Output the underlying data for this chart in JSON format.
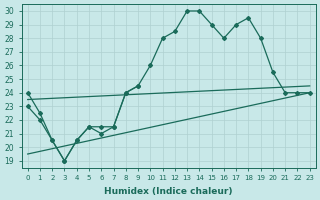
{
  "background_color": "#c8e8e8",
  "grid_color": "#afd0d0",
  "line_color": "#1a6b5a",
  "xlabel": "Humidex (Indice chaleur)",
  "xlim": [
    -0.5,
    23.5
  ],
  "ylim": [
    18.5,
    30.5
  ],
  "yticks": [
    19,
    20,
    21,
    22,
    23,
    24,
    25,
    26,
    27,
    28,
    29,
    30
  ],
  "xticks": [
    0,
    1,
    2,
    3,
    4,
    5,
    6,
    7,
    8,
    9,
    10,
    11,
    12,
    13,
    14,
    15,
    16,
    17,
    18,
    19,
    20,
    21,
    22,
    23
  ],
  "series": [
    {
      "x": [
        0,
        1,
        2,
        3,
        4,
        5,
        6,
        7,
        8,
        9,
        10,
        11,
        12,
        13,
        14,
        15,
        16,
        17,
        18,
        19,
        20,
        21,
        22,
        23
      ],
      "y": [
        24.0,
        22.5,
        null,
        19.0,
        null,
        null,
        null,
        null,
        null,
        null,
        26.0,
        28.0,
        28.5,
        30.0,
        30.0,
        29.0,
        28.0,
        29.0,
        29.5,
        28.0,
        25.5,
        24.0,
        24.0,
        24.0
      ],
      "has_markers": true,
      "markersize": 2.5
    },
    {
      "x": [
        0,
        1,
        2,
        3,
        4,
        5,
        6,
        7,
        8,
        9,
        10,
        11,
        12,
        13,
        14,
        15,
        16,
        17,
        18,
        19,
        20,
        21,
        22,
        23
      ],
      "y": [
        23.0,
        null,
        20.5,
        19.0,
        20.5,
        21.5,
        21.0,
        21.0,
        24.0,
        null,
        null,
        null,
        null,
        null,
        null,
        null,
        null,
        null,
        null,
        null,
        null,
        null,
        null,
        null
      ],
      "has_markers": true,
      "markersize": 2.5
    },
    {
      "x": [
        0,
        23
      ],
      "y": [
        23.5,
        24.5
      ],
      "has_markers": false,
      "markersize": 0
    },
    {
      "x": [
        0,
        23
      ],
      "y": [
        19.5,
        24.0
      ],
      "has_markers": false,
      "markersize": 0
    }
  ],
  "series_upper": {
    "x": [
      0,
      1,
      2,
      3,
      4,
      5,
      6,
      7,
      8,
      9,
      10,
      11,
      12,
      13,
      14,
      15,
      16,
      17,
      18,
      19,
      20,
      21,
      22,
      23
    ],
    "y": [
      24.0,
      22.5,
      20.5,
      19.0,
      20.5,
      21.5,
      21.5,
      21.5,
      24.0,
      24.5,
      26.0,
      28.0,
      28.5,
      30.0,
      30.0,
      29.0,
      28.0,
      29.0,
      29.5,
      28.0,
      25.5,
      24.0,
      24.0,
      24.0
    ]
  },
  "series_lower": {
    "x": [
      0,
      1,
      2,
      3,
      4,
      5,
      6,
      7,
      8,
      9
    ],
    "y": [
      23.0,
      22.0,
      20.5,
      19.0,
      20.5,
      21.5,
      21.0,
      21.5,
      24.0,
      24.5
    ]
  },
  "diag_upper": {
    "x": [
      0,
      23
    ],
    "y": [
      23.5,
      24.5
    ]
  },
  "diag_lower": {
    "x": [
      0,
      23
    ],
    "y": [
      19.5,
      24.0
    ]
  }
}
